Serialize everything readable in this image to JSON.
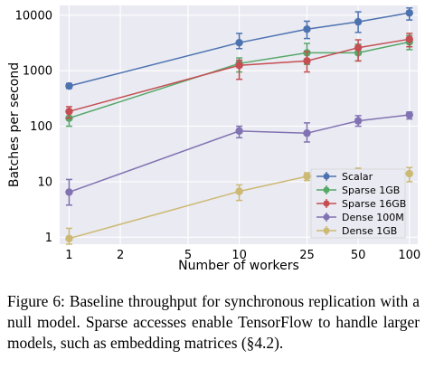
{
  "chart_data": {
    "type": "line",
    "xlabel": "Number of workers",
    "ylabel": "Batches per second",
    "xscale": "log",
    "yscale": "log",
    "xlim": [
      0.88,
      112
    ],
    "ylim": [
      0.75,
      15000
    ],
    "x_ticks": [
      1,
      2,
      5,
      10,
      25,
      50,
      100
    ],
    "x_tick_labels": [
      "1",
      "2",
      "5",
      "10",
      "25",
      "50",
      "100"
    ],
    "y_ticks": [
      1,
      10,
      100,
      1000,
      10000
    ],
    "y_tick_labels": [
      "1",
      "10",
      "100",
      "1000",
      "10000"
    ],
    "grid": true,
    "legend_position": "bottom-right",
    "x": [
      1,
      10,
      25,
      50,
      100
    ],
    "series": [
      {
        "name": "Scalar",
        "color": "#4c72b0",
        "marker": "circle",
        "values": [
          530,
          3200,
          5600,
          7600,
          11000
        ],
        "err_low": [
          480,
          2500,
          3800,
          4900,
          8200
        ],
        "err_high": [
          590,
          4700,
          7800,
          11500,
          13500
        ]
      },
      {
        "name": "Sparse 1GB",
        "color": "#55a868",
        "marker": "circle",
        "values": [
          140,
          1350,
          2100,
          2100,
          3300
        ],
        "err_low": [
          100,
          950,
          1300,
          1500,
          2400
        ],
        "err_high": [
          175,
          1700,
          3100,
          3000,
          4300
        ]
      },
      {
        "name": "Sparse 16GB",
        "color": "#c44e52",
        "marker": "circle",
        "values": [
          185,
          1250,
          1500,
          2600,
          3700
        ],
        "err_low": [
          140,
          700,
          950,
          1500,
          2700
        ],
        "err_high": [
          225,
          1550,
          2200,
          3600,
          4700
        ]
      },
      {
        "name": "Dense 100M",
        "color": "#8172b2",
        "marker": "circle",
        "values": [
          6.5,
          82,
          75,
          125,
          160
        ],
        "err_low": [
          3.8,
          62,
          52,
          100,
          135
        ],
        "err_high": [
          11,
          100,
          115,
          155,
          180
        ]
      },
      {
        "name": "Dense 1GB",
        "color": "#ccb974",
        "marker": "circle",
        "values": [
          0.95,
          6.7,
          12.5,
          15.5,
          14
        ],
        "err_low": [
          0.75,
          4.6,
          10.5,
          13.5,
          10
        ],
        "err_high": [
          1.45,
          8.8,
          14.5,
          17.5,
          18
        ]
      }
    ]
  },
  "caption": "Figure 6: Baseline throughput for synchronous replication with a null model. Sparse accesses enable TensorFlow to handle larger models, such as embedding matrices (§4.2)."
}
